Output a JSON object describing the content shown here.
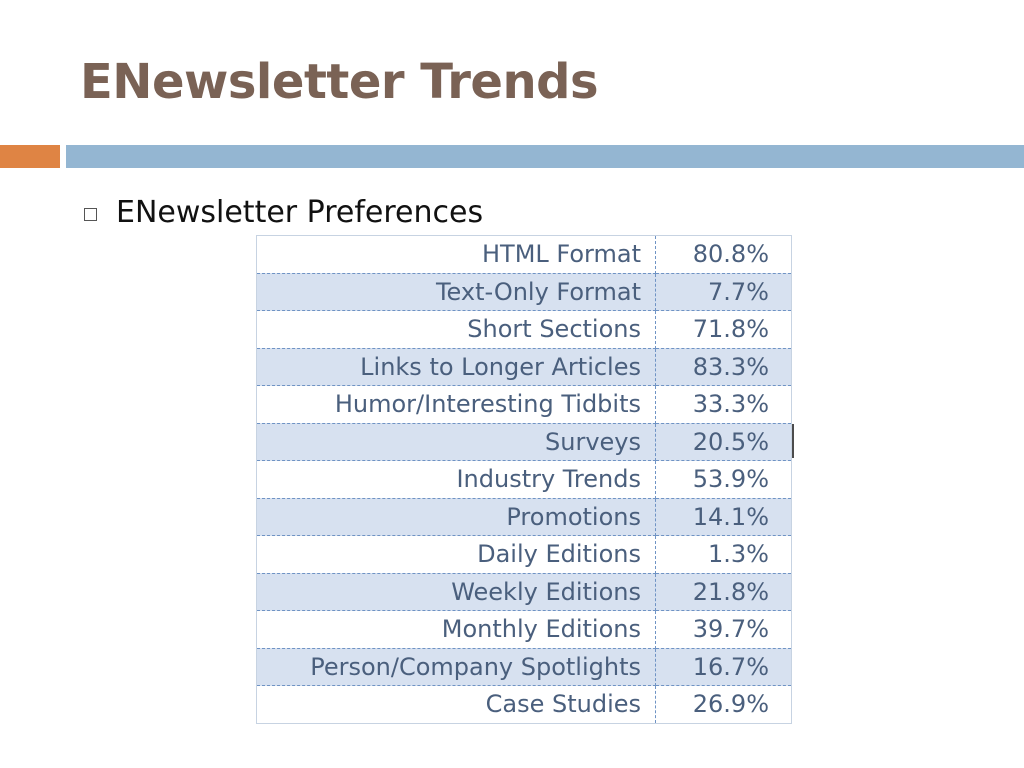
{
  "slide": {
    "title": "ENewsletter Trends",
    "bullet": "ENewsletter Preferences"
  },
  "table": {
    "rows": [
      {
        "label": "HTML Format",
        "value": "80.8%"
      },
      {
        "label": "Text-Only Format",
        "value": "7.7%"
      },
      {
        "label": "Short Sections",
        "value": "71.8%"
      },
      {
        "label": "Links to Longer Articles",
        "value": "83.3%"
      },
      {
        "label": "Humor/Interesting Tidbits",
        "value": "33.3%"
      },
      {
        "label": "Surveys",
        "value": "20.5%"
      },
      {
        "label": "Industry Trends",
        "value": "53.9%"
      },
      {
        "label": "Promotions",
        "value": "14.1%"
      },
      {
        "label": "Daily Editions",
        "value": "1.3%"
      },
      {
        "label": "Weekly Editions",
        "value": "21.8%"
      },
      {
        "label": "Monthly Editions",
        "value": "39.7%"
      },
      {
        "label": "Person/Company Spotlights",
        "value": "16.7%"
      },
      {
        "label": "Case Studies",
        "value": "26.9%"
      }
    ]
  },
  "colors": {
    "title": "#7a6255",
    "accent_orange": "#df8444",
    "accent_blue": "#94b6d2",
    "table_text": "#4a5f7d",
    "table_band": "#d7e1f0"
  }
}
